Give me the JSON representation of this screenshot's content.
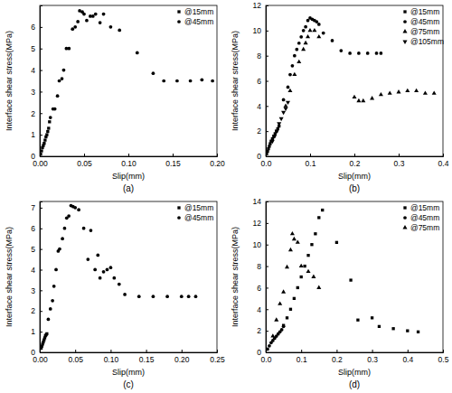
{
  "chart_data": [
    {
      "type": "scatter",
      "title": "(a)",
      "x_label": "Slip(mm)",
      "y_label": "Interface shear stress(MPa)",
      "xlim": [
        0,
        0.2
      ],
      "xticks": [
        {
          "value": 0,
          "label": "0.00"
        },
        0.05,
        {
          "value": 0.1,
          "label": "0.10"
        },
        0.15,
        {
          "value": 0.2,
          "label": "0.20"
        }
      ],
      "ylim": [
        0,
        7
      ],
      "yticks": [
        0,
        1,
        2,
        3,
        4,
        5,
        6
      ],
      "grid": false,
      "legend": "upper right",
      "series": [
        {
          "name": "@15mm",
          "color": "#000000",
          "marker": "square",
          "x": [
            0.001,
            0.002,
            0.003,
            0.004,
            0.005,
            0.006,
            0.007,
            0.008,
            0.009,
            0.01,
            0.011
          ],
          "values": [
            0.1,
            0.25,
            0.4,
            0.5,
            0.6,
            0.75,
            0.9,
            1.0,
            1.15,
            1.3,
            1.6
          ]
        },
        {
          "name": "@45mm",
          "color": "#000000",
          "marker": "circle",
          "x": [
            0.012,
            0.015,
            0.017,
            0.02,
            0.022,
            0.025,
            0.027,
            0.03,
            0.033,
            0.037,
            0.04,
            0.043,
            0.045,
            0.048,
            0.05,
            0.053,
            0.057,
            0.06,
            0.063,
            0.068,
            0.072,
            0.08,
            0.09,
            0.11,
            0.128,
            0.14,
            0.155,
            0.17,
            0.183,
            0.195
          ],
          "values": [
            1.8,
            2.2,
            2.2,
            2.8,
            3.5,
            3.6,
            4.0,
            5.0,
            5.0,
            5.9,
            6.0,
            6.25,
            6.75,
            6.7,
            6.6,
            6.3,
            6.5,
            6.5,
            6.6,
            6.2,
            6.6,
            6.0,
            5.85,
            4.8,
            3.85,
            3.5,
            3.5,
            3.5,
            3.55,
            3.5
          ]
        }
      ]
    },
    {
      "type": "scatter",
      "title": "(b)",
      "x_label": "Slip(mm)",
      "y_label": "Interface shear stress(MPa)",
      "xlim": [
        0,
        0.4
      ],
      "xticks": [
        {
          "value": 0,
          "label": "0.0"
        },
        0.1,
        0.2,
        0.3,
        0.4
      ],
      "ylim": [
        0,
        12
      ],
      "yticks": [
        0,
        2,
        4,
        6,
        8,
        10,
        12
      ],
      "grid": false,
      "legend": "upper right",
      "series": [
        {
          "name": "@15mm",
          "color": "#000000",
          "marker": "square",
          "x": [
            0.002,
            0.004,
            0.006,
            0.008,
            0.01,
            0.012,
            0.015,
            0.018,
            0.021,
            0.024,
            0.027,
            0.03
          ],
          "values": [
            0.2,
            0.4,
            0.6,
            0.8,
            1.0,
            1.2,
            1.4,
            1.6,
            1.8,
            2.0,
            2.2,
            2.4
          ]
        },
        {
          "name": "@45mm",
          "color": "#000000",
          "marker": "circle",
          "x": [
            0.04,
            0.05,
            0.055,
            0.06,
            0.065,
            0.07,
            0.075,
            0.08,
            0.085,
            0.09,
            0.095,
            0.1,
            0.105,
            0.11,
            0.115,
            0.12,
            0.13,
            0.15,
            0.17,
            0.19,
            0.21,
            0.23,
            0.25,
            0.26
          ],
          "values": [
            4.5,
            5.5,
            6.5,
            7.2,
            8.0,
            8.5,
            9.0,
            9.5,
            10.0,
            10.3,
            10.8,
            11.0,
            10.9,
            10.8,
            10.7,
            10.5,
            9.8,
            9.2,
            8.4,
            8.2,
            8.2,
            8.2,
            8.2,
            8.2
          ]
        },
        {
          "name": "@75mm",
          "color": "#000000",
          "marker": "triangle",
          "x": [
            0.045,
            0.055,
            0.065,
            0.075,
            0.085,
            0.09,
            0.095,
            0.1,
            0.11,
            0.12,
            0.2,
            0.21,
            0.22,
            0.24,
            0.26,
            0.28,
            0.3,
            0.32,
            0.34,
            0.36,
            0.38
          ],
          "values": [
            4.0,
            5.2,
            6.5,
            7.5,
            8.5,
            9.0,
            9.5,
            10.0,
            10.0,
            9.5,
            4.7,
            4.4,
            4.4,
            4.6,
            4.9,
            5.0,
            5.1,
            5.2,
            5.2,
            5.0,
            5.0
          ]
        },
        {
          "name": "@105mm",
          "color": "#000000",
          "marker": "triangle-down",
          "x": [
            0.015,
            0.02,
            0.025,
            0.03,
            0.035,
            0.04,
            0.045,
            0.05
          ],
          "values": [
            1.2,
            1.6,
            2.0,
            2.6,
            3.0,
            3.5,
            3.8,
            4.3
          ]
        }
      ]
    },
    {
      "type": "scatter",
      "title": "(c)",
      "x_label": "Slip(mm)",
      "y_label": "Interface shear stress(MPa)",
      "xlim": [
        0,
        0.25
      ],
      "xticks": [
        {
          "value": 0,
          "label": "0.00"
        },
        0.05,
        {
          "value": 0.1,
          "label": "0.10"
        },
        0.15,
        {
          "value": 0.2,
          "label": "0.20"
        },
        0.25
      ],
      "ylim": [
        0,
        7.3
      ],
      "yticks": [
        0,
        1,
        2,
        3,
        4,
        5,
        6,
        7
      ],
      "grid": false,
      "legend": "upper right",
      "series": [
        {
          "name": "@15mm",
          "color": "#000000",
          "marker": "square",
          "x": [
            0.002,
            0.003,
            0.004,
            0.005,
            0.006,
            0.007,
            0.008,
            0.009,
            0.01
          ],
          "values": [
            0.2,
            0.3,
            0.4,
            0.5,
            0.6,
            0.7,
            0.8,
            0.85,
            0.9
          ]
        },
        {
          "name": "@45mm",
          "color": "#000000",
          "marker": "circle",
          "x": [
            0.012,
            0.015,
            0.018,
            0.02,
            0.023,
            0.026,
            0.028,
            0.032,
            0.035,
            0.038,
            0.041,
            0.044,
            0.047,
            0.05,
            0.055,
            0.062,
            0.068,
            0.072,
            0.078,
            0.082,
            0.085,
            0.09,
            0.095,
            0.1,
            0.105,
            0.112,
            0.12,
            0.14,
            0.16,
            0.18,
            0.2,
            0.21,
            0.22
          ],
          "values": [
            1.6,
            2.1,
            2.5,
            3.2,
            4.0,
            4.9,
            5.0,
            5.5,
            6.0,
            6.5,
            6.6,
            7.1,
            7.05,
            7.0,
            6.9,
            6.0,
            4.5,
            5.9,
            4.0,
            4.7,
            3.6,
            3.9,
            4.0,
            4.1,
            3.6,
            3.3,
            2.8,
            2.7,
            2.7,
            2.7,
            2.7,
            2.7,
            2.7
          ]
        }
      ]
    },
    {
      "type": "scatter",
      "title": "(d)",
      "x_label": "Slip(mm)",
      "y_label": "Interface shear stress(MPa)",
      "xlim": [
        0,
        0.5
      ],
      "xticks": [
        {
          "value": 0,
          "label": "0.0"
        },
        0.1,
        0.2,
        0.3,
        0.4,
        0.5
      ],
      "ylim": [
        0,
        14
      ],
      "yticks": [
        0,
        2,
        4,
        6,
        8,
        10,
        12,
        14
      ],
      "grid": false,
      "legend": "upper right",
      "series": [
        {
          "name": "@15mm",
          "color": "#000000",
          "marker": "square",
          "x": [
            0.05,
            0.06,
            0.07,
            0.08,
            0.09,
            0.1,
            0.11,
            0.12,
            0.13,
            0.14,
            0.15,
            0.16,
            0.2,
            0.24,
            0.26,
            0.3,
            0.32,
            0.36,
            0.4,
            0.43
          ],
          "values": [
            2.5,
            3.2,
            4.0,
            5.0,
            6.0,
            7.0,
            8.0,
            9.0,
            10.0,
            11.0,
            12.5,
            13.2,
            10.2,
            6.7,
            3.0,
            3.2,
            2.4,
            2.2,
            2.0,
            1.9
          ]
        },
        {
          "name": "@45mm",
          "color": "#000000",
          "marker": "circle",
          "x": [
            0.005,
            0.01,
            0.015,
            0.02,
            0.025,
            0.03,
            0.035,
            0.04,
            0.045,
            0.05
          ],
          "values": [
            0.3,
            0.6,
            0.9,
            1.1,
            1.3,
            1.5,
            1.7,
            1.9,
            2.1,
            2.4
          ]
        },
        {
          "name": "@75mm",
          "color": "#000000",
          "marker": "triangle",
          "x": [
            0.02,
            0.03,
            0.04,
            0.05,
            0.06,
            0.07,
            0.075,
            0.08,
            0.09,
            0.1,
            0.12,
            0.135,
            0.15
          ],
          "values": [
            1.5,
            3.0,
            4.5,
            5.6,
            7.9,
            9.5,
            11.0,
            10.5,
            10.2,
            8.0,
            7.5,
            7.0,
            6.0
          ]
        }
      ]
    }
  ]
}
